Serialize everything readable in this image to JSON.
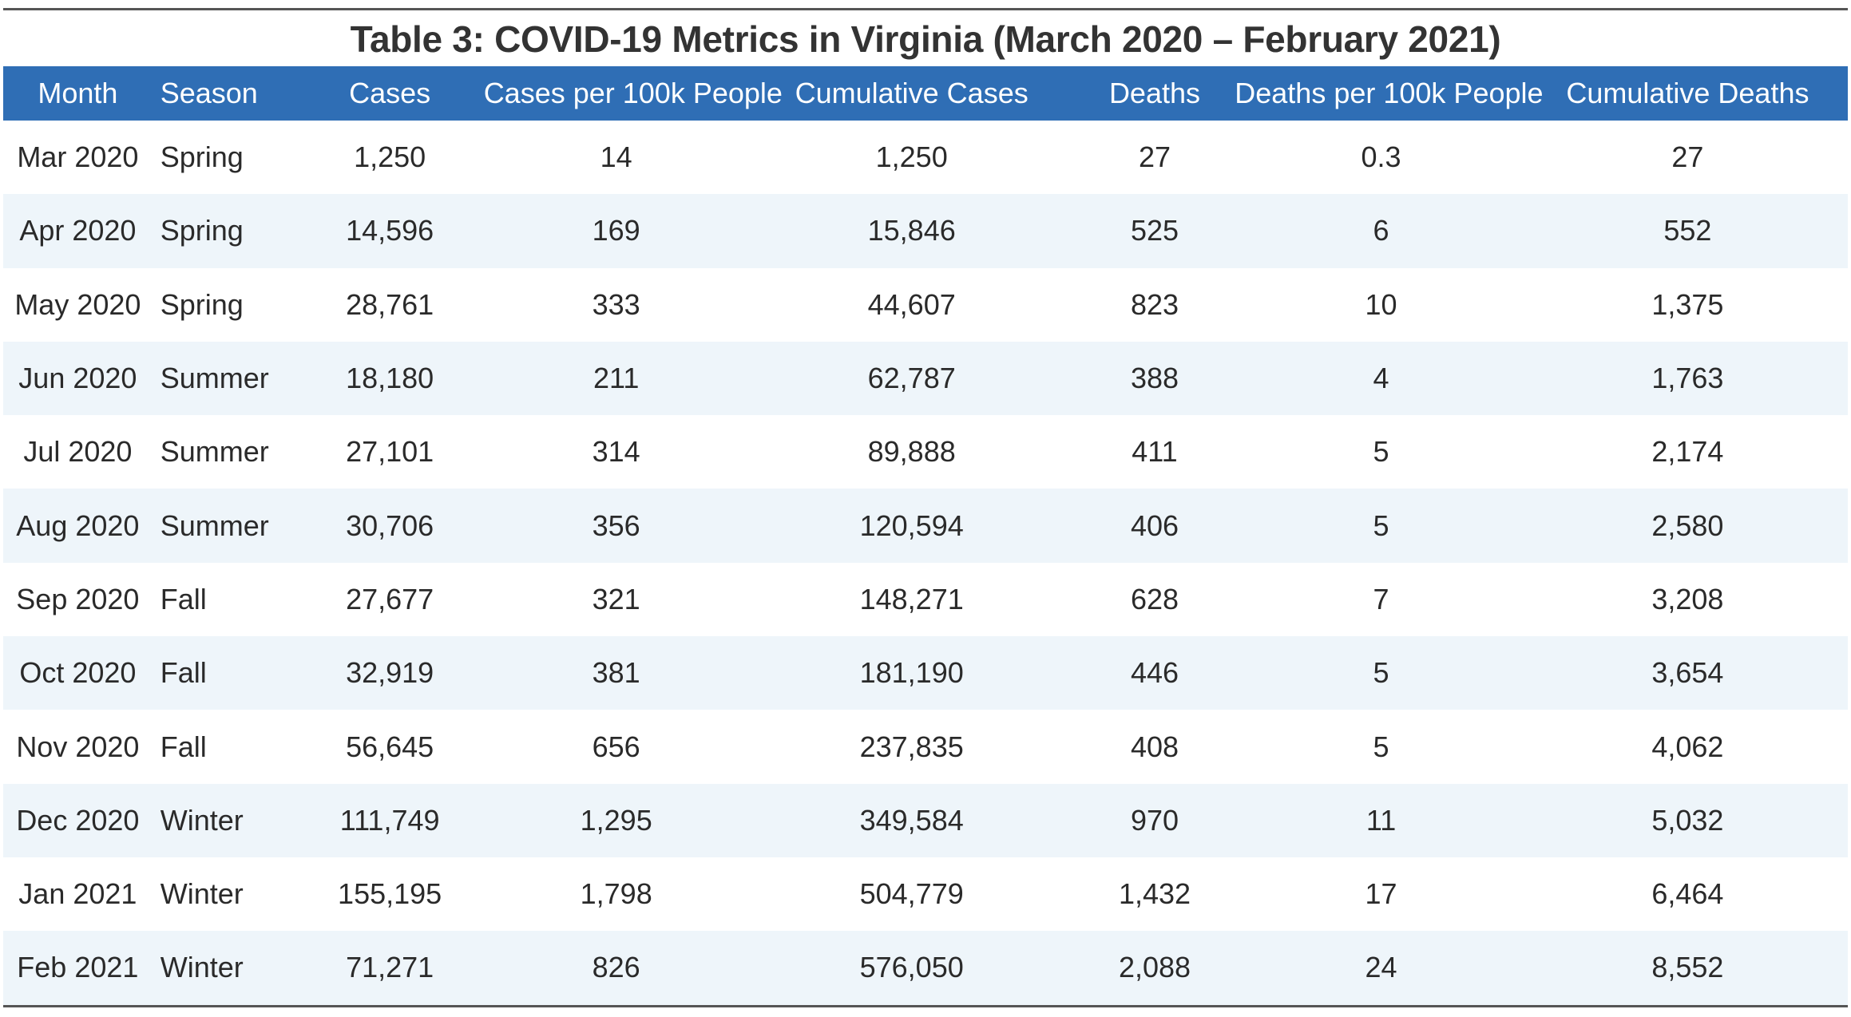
{
  "title": "Table 3: COVID-19 Metrics in Virginia (March 2020 – February 2021)",
  "columns": [
    "Month",
    "Season",
    "Cases",
    "Cases per 100k People",
    "Cumulative Cases",
    "Deaths",
    "Deaths per 100k People",
    "Cumulative Deaths"
  ],
  "rows": [
    [
      "Mar 2020",
      "Spring",
      "1,250",
      "14",
      "1,250",
      "27",
      "0.3",
      "27"
    ],
    [
      "Apr 2020",
      "Spring",
      "14,596",
      "169",
      "15,846",
      "525",
      "6",
      "552"
    ],
    [
      "May 2020",
      "Spring",
      "28,761",
      "333",
      "44,607",
      "823",
      "10",
      "1,375"
    ],
    [
      "Jun 2020",
      "Summer",
      "18,180",
      "211",
      "62,787",
      "388",
      "4",
      "1,763"
    ],
    [
      "Jul 2020",
      "Summer",
      "27,101",
      "314",
      "89,888",
      "411",
      "5",
      "2,174"
    ],
    [
      "Aug 2020",
      "Summer",
      "30,706",
      "356",
      "120,594",
      "406",
      "5",
      "2,580"
    ],
    [
      "Sep 2020",
      "Fall",
      "27,677",
      "321",
      "148,271",
      "628",
      "7",
      "3,208"
    ],
    [
      "Oct 2020",
      "Fall",
      "32,919",
      "381",
      "181,190",
      "446",
      "5",
      "3,654"
    ],
    [
      "Nov 2020",
      "Fall",
      "56,645",
      "656",
      "237,835",
      "408",
      "5",
      "4,062"
    ],
    [
      "Dec 2020",
      "Winter",
      "111,749",
      "1,295",
      "349,584",
      "970",
      "11",
      "5,032"
    ],
    [
      "Jan 2021",
      "Winter",
      "155,195",
      "1,798",
      "504,779",
      "1,432",
      "17",
      "6,464"
    ],
    [
      "Feb 2021",
      "Winter",
      "71,271",
      "826",
      "576,050",
      "2,088",
      "24",
      "8,552"
    ]
  ],
  "colors": {
    "header_bg": "#2f6eb5",
    "header_text": "#ffffff",
    "stripe_bg": "#eef5fa",
    "rule": "#555555"
  }
}
